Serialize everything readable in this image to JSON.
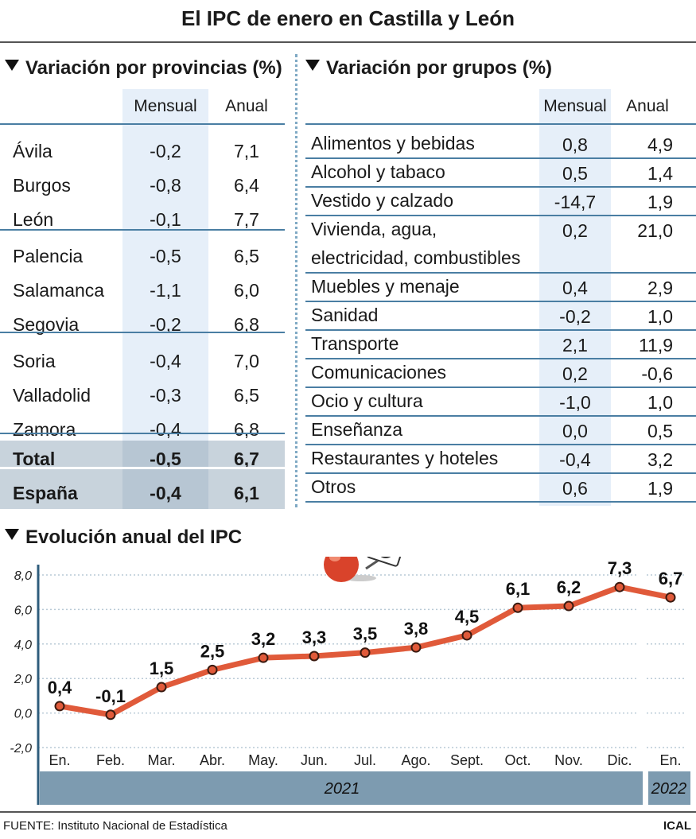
{
  "title": "El IPC de enero en Castilla y León",
  "provinces": {
    "heading": "Variación por provincias (%)",
    "col_mensual": "Mensual",
    "col_anual": "Anual",
    "rows": [
      {
        "name": "Ávila",
        "mensual": "-0,2",
        "anual": "7,1"
      },
      {
        "name": "Burgos",
        "mensual": "-0,8",
        "anual": "6,4"
      },
      {
        "name": "León",
        "mensual": "-0,1",
        "anual": "7,7"
      },
      {
        "name": "Palencia",
        "mensual": "-0,5",
        "anual": "6,5"
      },
      {
        "name": "Salamanca",
        "mensual": "-1,1",
        "anual": "6,0"
      },
      {
        "name": "Segovia",
        "mensual": "-0,2",
        "anual": "6,8"
      },
      {
        "name": "Soria",
        "mensual": "-0,4",
        "anual": "7,0"
      },
      {
        "name": "Valladolid",
        "mensual": "-0,3",
        "anual": "6,5"
      },
      {
        "name": "Zamora",
        "mensual": "-0,4",
        "anual": "6,8"
      },
      {
        "name": "Total",
        "mensual": "-0,5",
        "anual": "6,7"
      },
      {
        "name": "España",
        "mensual": "-0,4",
        "anual": "6,1"
      }
    ]
  },
  "groups": {
    "heading": "Variación por grupos (%)",
    "col_mensual": "Mensual",
    "col_anual": "Anual",
    "rows": [
      {
        "name": "Alimentos y bebidas",
        "mensual": "0,8",
        "anual": "4,9"
      },
      {
        "name": "Alcohol y tabaco",
        "mensual": "0,5",
        "anual": "1,4"
      },
      {
        "name": "Vestido y calzado",
        "mensual": "-14,7",
        "anual": "1,9"
      },
      {
        "name": "Vivienda, agua,",
        "name2": "electricidad, combustibles",
        "mensual": "0,2",
        "anual": "21,0"
      },
      {
        "name": "Muebles y menaje",
        "mensual": "0,4",
        "anual": "2,9"
      },
      {
        "name": "Sanidad",
        "mensual": "-0,2",
        "anual": "1,0"
      },
      {
        "name": "Transporte",
        "mensual": "2,1",
        "anual": "11,9"
      },
      {
        "name": "Comunicaciones",
        "mensual": "0,2",
        "anual": "-0,6"
      },
      {
        "name": "Ocio y cultura",
        "mensual": "-1,0",
        "anual": "1,0"
      },
      {
        "name": "Enseñanza",
        "mensual": "0,0",
        "anual": "0,5"
      },
      {
        "name": "Restaurantes y hoteles",
        "mensual": "-0,4",
        "anual": "3,2"
      },
      {
        "name": "Otros",
        "mensual": "0,6",
        "anual": "1,9"
      }
    ]
  },
  "chart_heading": "Evolución anual del IPC",
  "chart_data": {
    "type": "line",
    "categories": [
      "En.",
      "Feb.",
      "Mar.",
      "Abr.",
      "May.",
      "Jun.",
      "Jul.",
      "Ago.",
      "Sept.",
      "Oct.",
      "Nov.",
      "Dic.",
      "En."
    ],
    "values": [
      0.4,
      -0.1,
      1.5,
      2.5,
      3.2,
      3.3,
      3.5,
      3.8,
      4.5,
      6.1,
      6.2,
      7.3,
      6.7
    ],
    "value_labels": [
      "0,4",
      "-0,1",
      "1,5",
      "2,5",
      "3,2",
      "3,3",
      "3,5",
      "3,8",
      "4,5",
      "6,1",
      "6,2",
      "7,3",
      "6,7"
    ],
    "yticks": [
      "8,0",
      "6,0",
      "4,0",
      "2,0",
      "0,0",
      "-2,0"
    ],
    "ylim": [
      -2,
      8
    ],
    "year_labels": [
      "2021",
      "2022"
    ],
    "grid": true,
    "line_color": "#e05a3a",
    "band_color": "#7d9bb0"
  },
  "source": "FUENTE: Instituto Nacional de Estadística",
  "brand": "ICAL"
}
